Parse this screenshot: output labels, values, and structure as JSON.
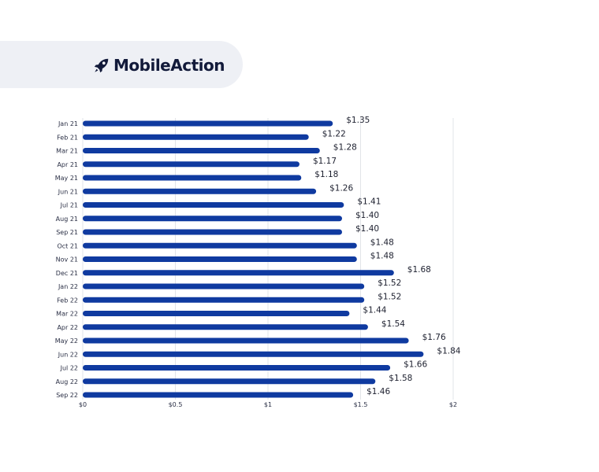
{
  "brand": {
    "name": "MobileAction",
    "logo_icon": "rocket-icon",
    "text_color": "#121a3a",
    "pill_color": "#eef0f5"
  },
  "chart_data": {
    "type": "bar",
    "orientation": "horizontal",
    "categories": [
      "Jan 21",
      "Feb 21",
      "Mar 21",
      "Apr 21",
      "May 21",
      "Jun 21",
      "Jul 21",
      "Aug 21",
      "Sep 21",
      "Oct 21",
      "Nov 21",
      "Dec 21",
      "Jan 22",
      "Feb 22",
      "Mar 22",
      "Apr 22",
      "May 22",
      "Jun 22",
      "Jul 22",
      "Aug 22",
      "Sep 22"
    ],
    "values": [
      1.35,
      1.22,
      1.28,
      1.17,
      1.18,
      1.26,
      1.41,
      1.4,
      1.4,
      1.48,
      1.48,
      1.68,
      1.52,
      1.52,
      1.44,
      1.54,
      1.76,
      1.84,
      1.66,
      1.58,
      1.46
    ],
    "data_labels": [
      "$1.35",
      "$1.22",
      "$1.28",
      "$1.17",
      "$1.18",
      "$1.26",
      "$1.41",
      "$1.40",
      "$1.40",
      "$1.48",
      "$1.48",
      "$1.68",
      "$1.52",
      "$1.52",
      "$1.44",
      "$1.54",
      "$1.76",
      "$1.84",
      "$1.66",
      "$1.58",
      "$1.46"
    ],
    "xlim": [
      0,
      2
    ],
    "x_ticks": [
      0,
      0.5,
      1,
      1.5,
      2
    ],
    "x_tick_labels": [
      "$0",
      "$0.5",
      "$1",
      "$1.5",
      "$2"
    ],
    "grid": true,
    "bar_color": "#0f3aa0",
    "grid_color": "#e2e4e8"
  }
}
